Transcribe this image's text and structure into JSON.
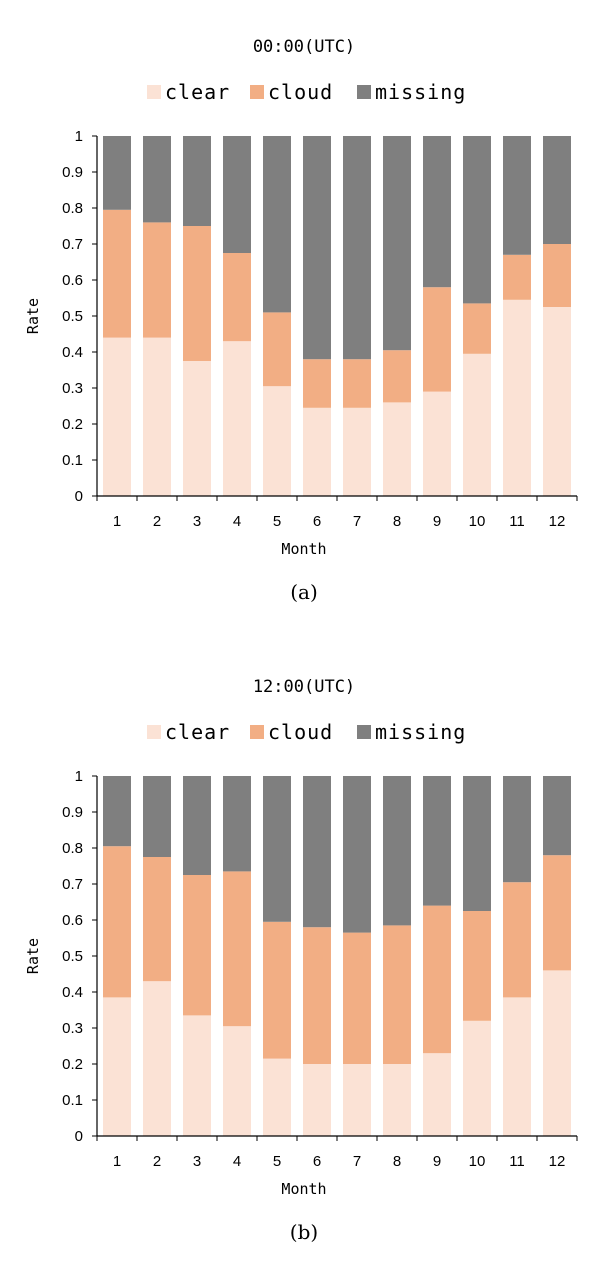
{
  "chart_data": [
    {
      "type": "bar",
      "stacked": true,
      "title": "00:00(UTC)",
      "xlabel": "Month",
      "ylabel": "Rate",
      "categories": [
        "1",
        "2",
        "3",
        "4",
        "5",
        "6",
        "7",
        "8",
        "9",
        "10",
        "11",
        "12"
      ],
      "series": [
        {
          "name": "clear",
          "color": "#fbe2d5",
          "values": [
            0.44,
            0.44,
            0.375,
            0.43,
            0.305,
            0.245,
            0.245,
            0.26,
            0.29,
            0.395,
            0.545,
            0.525
          ]
        },
        {
          "name": "cloud",
          "color": "#f2ae84",
          "values": [
            0.355,
            0.32,
            0.375,
            0.245,
            0.205,
            0.135,
            0.135,
            0.145,
            0.29,
            0.14,
            0.125,
            0.175
          ]
        },
        {
          "name": "missing",
          "color": "#7f7f7f",
          "values": [
            0.205,
            0.24,
            0.25,
            0.325,
            0.49,
            0.62,
            0.62,
            0.595,
            0.42,
            0.465,
            0.33,
            0.3
          ]
        }
      ],
      "ylim": [
        0,
        1
      ],
      "yticks": [
        "0",
        "0.1",
        "0.2",
        "0.3",
        "0.4",
        "0.5",
        "0.6",
        "0.7",
        "0.8",
        "0.9",
        "1"
      ],
      "legend_position": "top",
      "grid": false
    },
    {
      "type": "bar",
      "stacked": true,
      "title": "12:00(UTC)",
      "xlabel": "Month",
      "ylabel": "Rate",
      "categories": [
        "1",
        "2",
        "3",
        "4",
        "5",
        "6",
        "7",
        "8",
        "9",
        "10",
        "11",
        "12"
      ],
      "series": [
        {
          "name": "clear",
          "color": "#fbe2d5",
          "values": [
            0.385,
            0.43,
            0.335,
            0.305,
            0.215,
            0.2,
            0.2,
            0.2,
            0.23,
            0.32,
            0.385,
            0.46
          ]
        },
        {
          "name": "cloud",
          "color": "#f2ae84",
          "values": [
            0.42,
            0.345,
            0.39,
            0.43,
            0.38,
            0.38,
            0.365,
            0.385,
            0.41,
            0.305,
            0.32,
            0.32
          ]
        },
        {
          "name": "missing",
          "color": "#7f7f7f",
          "values": [
            0.195,
            0.225,
            0.275,
            0.265,
            0.405,
            0.42,
            0.435,
            0.415,
            0.36,
            0.375,
            0.295,
            0.22
          ]
        }
      ],
      "ylim": [
        0,
        1
      ],
      "yticks": [
        "0",
        "0.1",
        "0.2",
        "0.3",
        "0.4",
        "0.5",
        "0.6",
        "0.7",
        "0.8",
        "0.9",
        "1"
      ],
      "legend_position": "top",
      "grid": false
    }
  ],
  "captions": [
    "(a)",
    "(b)"
  ]
}
